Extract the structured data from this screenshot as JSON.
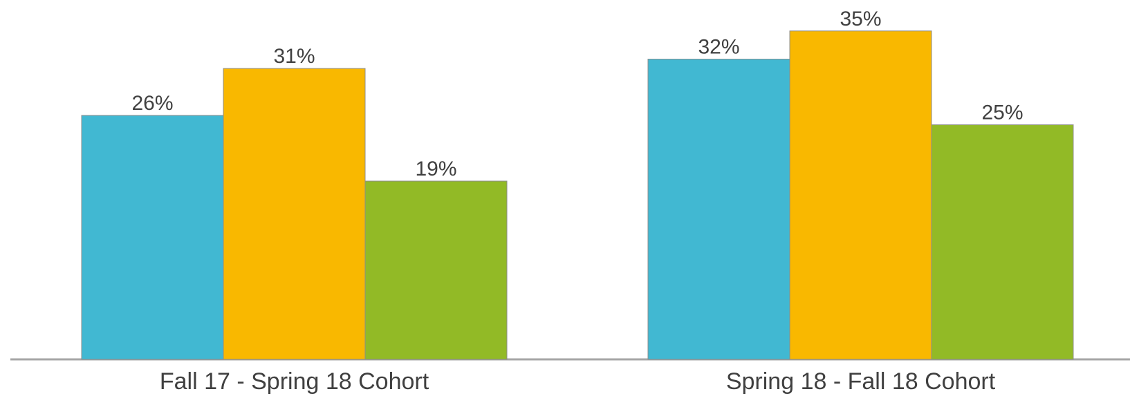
{
  "chart_data": {
    "type": "bar",
    "categories": [
      "Fall 17 - Spring 18 Cohort",
      "Spring 18 - Fall 18 Cohort"
    ],
    "series": [
      {
        "values": [
          26,
          32
        ],
        "labels": [
          "26%",
          "32%"
        ],
        "color": "#41B8D2"
      },
      {
        "values": [
          31,
          35
        ],
        "labels": [
          "31%",
          "35%"
        ],
        "color": "#F9B800"
      },
      {
        "values": [
          19,
          25
        ],
        "labels": [
          "19%",
          "25%"
        ],
        "color": "#92BA26"
      }
    ],
    "title": "",
    "xlabel": "",
    "ylabel": "",
    "ylim": [
      0,
      35.5
    ],
    "grid": false,
    "axis_color": "#A6A6A6",
    "bar_outline_color": "#8C8C8C",
    "label_color": "#404040"
  }
}
